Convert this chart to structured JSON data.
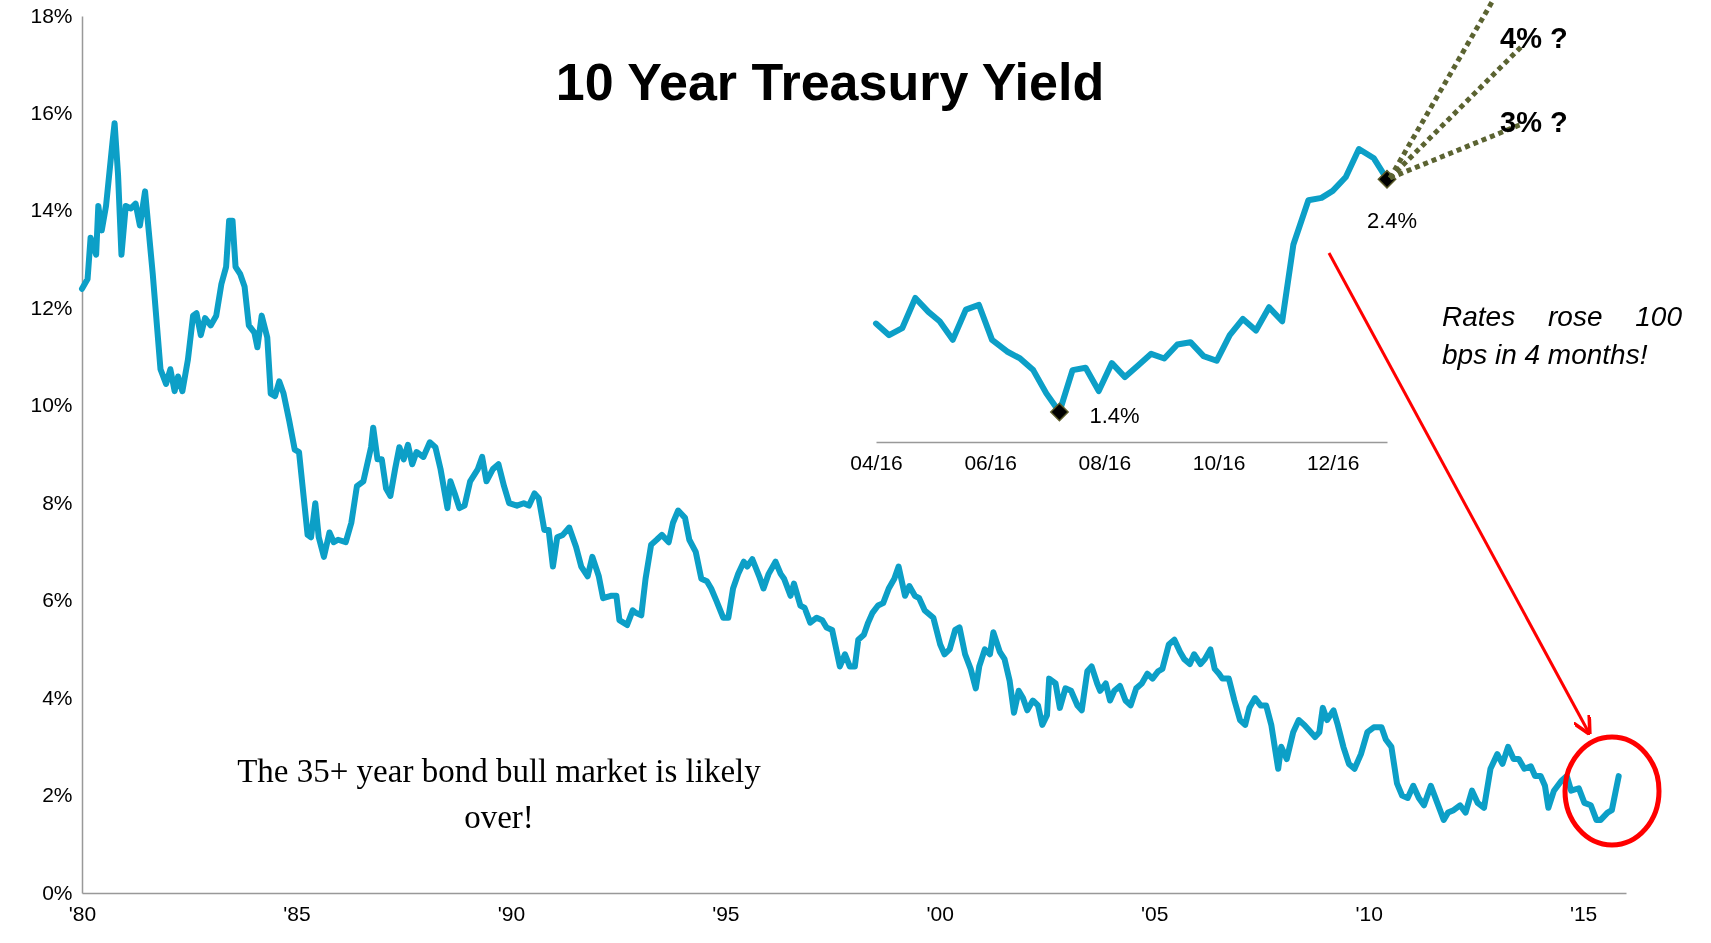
{
  "chart_data": [
    {
      "type": "line",
      "title": "10 Year Treasury Yield",
      "annotations": [
        "The 35+ year bond bull market is likely over!"
      ],
      "x": [
        1980.0,
        1980.13,
        1980.2,
        1980.33,
        1980.38,
        1980.46,
        1980.56,
        1980.71,
        1980.76,
        1980.84,
        1980.92,
        1981.02,
        1981.14,
        1981.25,
        1981.35,
        1981.47,
        1981.65,
        1981.83,
        1981.96,
        1982.06,
        1982.16,
        1982.24,
        1982.34,
        1982.47,
        1982.59,
        1982.67,
        1982.77,
        1982.87,
        1983.0,
        1983.13,
        1983.25,
        1983.36,
        1983.43,
        1983.51,
        1983.58,
        1983.69,
        1983.79,
        1983.89,
        1984.02,
        1984.09,
        1984.19,
        1984.32,
        1984.4,
        1984.5,
        1984.6,
        1984.7,
        1984.83,
        1984.96,
        1985.06,
        1985.26,
        1985.34,
        1985.44,
        1985.52,
        1985.64,
        1985.77,
        1985.87,
        1985.97,
        1986.15,
        1986.28,
        1986.41,
        1986.56,
        1986.74,
        1986.79,
        1986.89,
        1986.99,
        1987.09,
        1987.19,
        1987.3,
        1987.4,
        1987.5,
        1987.6,
        1987.7,
        1987.8,
        1987.96,
        1988.11,
        1988.24,
        1988.36,
        1988.52,
        1988.59,
        1988.69,
        1988.8,
        1988.92,
        1989.05,
        1989.23,
        1989.33,
        1989.43,
        1989.58,
        1989.71,
        1989.84,
        1989.96,
        1990.14,
        1990.3,
        1990.42,
        1990.55,
        1990.65,
        1990.78,
        1990.88,
        1990.98,
        1991.08,
        1991.21,
        1991.36,
        1991.52,
        1991.64,
        1991.79,
        1991.9,
        1992.05,
        1992.15,
        1992.33,
        1992.46,
        1992.53,
        1992.71,
        1992.84,
        1992.91,
        1993.04,
        1993.14,
        1993.27,
        1993.4,
        1993.52,
        1993.68,
        1993.78,
        1993.9,
        1994.06,
        1994.16,
        1994.31,
        1994.44,
        1994.57,
        1994.67,
        1994.79,
        1994.95,
        1995.07,
        1995.18,
        1995.3,
        1995.43,
        1995.51,
        1995.63,
        1995.79,
        1995.89,
        1996.01,
        1996.17,
        1996.29,
        1996.37,
        1996.52,
        1996.6,
        1996.75,
        1996.85,
        1996.98,
        1997.13,
        1997.26,
        1997.36,
        1997.49,
        1997.67,
        1997.79,
        1997.9,
        1998.02,
        1998.1,
        1998.23,
        1998.33,
        1998.43,
        1998.56,
        1998.68,
        1998.81,
        1998.94,
        1999.04,
        1999.19,
        1999.29,
        1999.42,
        1999.52,
        1999.65,
        1999.85,
        2000.01,
        2000.11,
        2000.23,
        2000.36,
        2000.46,
        2000.59,
        2000.72,
        2000.84,
        2000.92,
        2001.05,
        2001.17,
        2001.25,
        2001.4,
        2001.51,
        2001.63,
        2001.73,
        2001.84,
        2001.94,
        2002.04,
        2002.17,
        2002.29,
        2002.39,
        2002.5,
        2002.55,
        2002.7,
        2002.8,
        2002.93,
        2003.06,
        2003.21,
        2003.31,
        2003.44,
        2003.54,
        2003.67,
        2003.74,
        2003.87,
        2003.97,
        2004.07,
        2004.2,
        2004.33,
        2004.45,
        2004.58,
        2004.71,
        2004.84,
        2004.96,
        2005.09,
        2005.19,
        2005.34,
        2005.47,
        2005.6,
        2005.7,
        2005.83,
        2005.93,
        2006.08,
        2006.18,
        2006.31,
        2006.41,
        2006.51,
        2006.59,
        2006.74,
        2006.87,
        2007.0,
        2007.12,
        2007.22,
        2007.35,
        2007.48,
        2007.61,
        2007.73,
        2007.89,
        2007.96,
        2008.09,
        2008.24,
        2008.37,
        2008.5,
        2008.6,
        2008.75,
        2008.85,
        2008.93,
        2009.03,
        2009.18,
        2009.28,
        2009.41,
        2009.54,
        2009.67,
        2009.82,
        2009.97,
        2010.12,
        2010.3,
        2010.4,
        2010.53,
        2010.66,
        2010.78,
        2010.91,
        2011.04,
        2011.17,
        2011.29,
        2011.45,
        2011.6,
        2011.75,
        2011.85,
        2011.98,
        2012.13,
        2012.26,
        2012.41,
        2012.54,
        2012.69,
        2012.84,
        2013.0,
        2013.12,
        2013.25,
        2013.38,
        2013.5,
        2013.63,
        2013.78,
        2013.88,
        2014.01,
        2014.11,
        2014.19,
        2014.32,
        2014.49,
        2014.62,
        2014.72,
        2014.9,
        2015.03,
        2015.18,
        2015.31,
        2015.41,
        2015.57,
        2015.67,
        2015.75,
        2015.83
      ],
      "series": [
        {
          "color": "#0c9fc7",
          "values": [
            12.4,
            12.6,
            13.45,
            13.1,
            14.1,
            13.6,
            14.1,
            15.4,
            15.8,
            14.75,
            13.1,
            14.1,
            14.05,
            14.15,
            13.7,
            14.4,
            12.7,
            10.75,
            10.45,
            10.75,
            10.3,
            10.6,
            10.3,
            10.95,
            11.85,
            11.9,
            11.45,
            11.8,
            11.65,
            11.85,
            12.5,
            12.85,
            13.8,
            13.8,
            12.85,
            12.7,
            12.45,
            11.65,
            11.5,
            11.2,
            11.85,
            11.4,
            10.25,
            10.2,
            10.5,
            10.25,
            9.7,
            9.1,
            9.05,
            7.35,
            7.3,
            8.0,
            7.3,
            6.9,
            7.4,
            7.2,
            7.25,
            7.2,
            7.6,
            8.35,
            8.45,
            9.15,
            9.55,
            8.9,
            8.9,
            8.3,
            8.15,
            8.7,
            9.15,
            8.9,
            9.2,
            8.8,
            9.05,
            8.95,
            9.25,
            9.15,
            8.7,
            7.9,
            8.45,
            8.2,
            7.9,
            7.95,
            8.45,
            8.7,
            8.95,
            8.45,
            8.7,
            8.8,
            8.35,
            8.0,
            7.95,
            8.0,
            7.95,
            8.2,
            8.1,
            7.45,
            7.45,
            6.7,
            7.3,
            7.35,
            7.5,
            7.1,
            6.7,
            6.5,
            6.9,
            6.5,
            6.05,
            6.1,
            6.1,
            5.6,
            5.5,
            5.8,
            5.75,
            5.7,
            6.45,
            7.15,
            7.25,
            7.35,
            7.2,
            7.6,
            7.85,
            7.7,
            7.25,
            7.0,
            6.45,
            6.4,
            6.25,
            6.0,
            5.65,
            5.65,
            6.25,
            6.55,
            6.8,
            6.7,
            6.85,
            6.5,
            6.25,
            6.55,
            6.8,
            6.55,
            6.45,
            6.1,
            6.35,
            5.9,
            5.85,
            5.55,
            5.65,
            5.6,
            5.45,
            5.4,
            4.65,
            4.9,
            4.65,
            4.65,
            5.2,
            5.3,
            5.55,
            5.75,
            5.9,
            5.95,
            6.25,
            6.45,
            6.7,
            6.1,
            6.3,
            6.1,
            6.05,
            5.8,
            5.65,
            5.1,
            4.9,
            5.0,
            5.4,
            5.45,
            4.9,
            4.6,
            4.2,
            4.65,
            5.0,
            4.9,
            5.35,
            4.95,
            4.8,
            4.35,
            3.7,
            4.15,
            4.0,
            3.75,
            3.95,
            3.85,
            3.45,
            3.65,
            4.4,
            4.3,
            3.8,
            4.2,
            4.15,
            3.85,
            3.75,
            4.55,
            4.65,
            4.3,
            4.15,
            4.3,
            3.95,
            4.15,
            4.25,
            3.95,
            3.85,
            4.2,
            4.3,
            4.5,
            4.4,
            4.55,
            4.6,
            5.1,
            5.2,
            4.95,
            4.8,
            4.7,
            4.9,
            4.7,
            4.8,
            5.0,
            4.6,
            4.5,
            4.4,
            4.4,
            3.95,
            3.55,
            3.45,
            3.8,
            4.0,
            3.85,
            3.85,
            3.45,
            2.55,
            3.0,
            2.75,
            3.3,
            3.55,
            3.45,
            3.35,
            3.2,
            3.3,
            3.8,
            3.55,
            3.75,
            3.45,
            3.0,
            2.65,
            2.55,
            2.85,
            3.3,
            3.4,
            3.4,
            3.15,
            3.0,
            2.25,
            2.0,
            1.95,
            2.2,
            1.95,
            1.8,
            2.2,
            1.85,
            1.5,
            1.65,
            1.7,
            1.8,
            1.65,
            2.1,
            1.85,
            1.75,
            2.55,
            2.85,
            2.65,
            3.0,
            2.75,
            2.75,
            2.55,
            2.6,
            2.4,
            2.4,
            2.2,
            1.75,
            2.1,
            2.3,
            2.4,
            2.1,
            2.15,
            1.85,
            1.8,
            1.5,
            1.5,
            1.65,
            1.7,
            2.05,
            2.4
          ]
        }
      ],
      "xlim": [
        1980,
        2016
      ],
      "xticks": [
        {
          "value": 1980,
          "label": "'80"
        },
        {
          "value": 1985,
          "label": "'85"
        },
        {
          "value": 1990,
          "label": "'90"
        },
        {
          "value": 1995,
          "label": "'95"
        },
        {
          "value": 2000,
          "label": "'00"
        },
        {
          "value": 2005,
          "label": "'05"
        },
        {
          "value": 2010,
          "label": "'10"
        },
        {
          "value": 2015,
          "label": "'15"
        }
      ],
      "ylim": [
        0,
        18
      ],
      "yticks": [
        {
          "value": 0,
          "label": "0%"
        },
        {
          "value": 2,
          "label": "2%"
        },
        {
          "value": 4,
          "label": "4%"
        },
        {
          "value": 6,
          "label": "6%"
        },
        {
          "value": 8,
          "label": "8%"
        },
        {
          "value": 10,
          "label": "10%"
        },
        {
          "value": 12,
          "label": "12%"
        },
        {
          "value": 14,
          "label": "14%"
        },
        {
          "value": 16,
          "label": "16%"
        },
        {
          "value": 18,
          "label": "18%"
        }
      ]
    },
    {
      "type": "line",
      "annotations": [
        "4% ?",
        "3% ?",
        "Rates rose 100 bps in 4 months!"
      ],
      "tick_labels": "x",
      "series": [
        {
          "color": "#0c9fc7",
          "x": [
            "2016-04-01",
            "2016-04-08",
            "2016-04-15",
            "2016-04-22",
            "2016-04-29",
            "2016-05-05",
            "2016-05-12",
            "2016-05-19",
            "2016-05-26",
            "2016-06-02",
            "2016-06-10",
            "2016-06-17",
            "2016-06-24",
            "2016-07-01",
            "2016-07-08",
            "2016-07-15",
            "2016-07-22",
            "2016-07-29",
            "2016-08-05",
            "2016-08-12",
            "2016-08-19",
            "2016-08-26",
            "2016-09-02",
            "2016-09-09",
            "2016-09-16",
            "2016-09-23",
            "2016-09-30",
            "2016-10-07",
            "2016-10-14",
            "2016-10-21",
            "2016-10-28",
            "2016-11-04",
            "2016-11-10",
            "2016-11-18",
            "2016-11-25",
            "2016-12-01",
            "2016-12-08",
            "2016-12-15",
            "2016-12-23",
            "2016-12-30"
          ],
          "values": [
            1.78,
            1.73,
            1.76,
            1.89,
            1.83,
            1.79,
            1.71,
            1.84,
            1.86,
            1.71,
            1.66,
            1.63,
            1.58,
            1.48,
            1.4,
            1.58,
            1.59,
            1.49,
            1.61,
            1.55,
            1.6,
            1.65,
            1.63,
            1.69,
            1.7,
            1.64,
            1.62,
            1.73,
            1.8,
            1.75,
            1.85,
            1.79,
            2.12,
            2.31,
            2.32,
            2.35,
            2.41,
            2.53,
            2.49,
            2.4
          ]
        },
        {
          "type": "scatter",
          "marker": "diamond",
          "color": "#000000",
          "x": [
            "2016-07-08",
            "2016-12-30"
          ],
          "values": [
            1.4,
            2.4
          ],
          "value_labels": [
            "1.4%",
            "2.4%"
          ]
        }
      ],
      "xlim": [
        "2016-04-01",
        "2016-12-30"
      ],
      "xticks": [
        {
          "value": "2016-04-01",
          "label": "04/16"
        },
        {
          "value": "2016-06-01",
          "label": "06/16"
        },
        {
          "value": "2016-08-01",
          "label": "08/16"
        },
        {
          "value": "2016-10-01",
          "label": "10/16"
        },
        {
          "value": "2016-12-01",
          "label": "12/16"
        }
      ]
    }
  ]
}
